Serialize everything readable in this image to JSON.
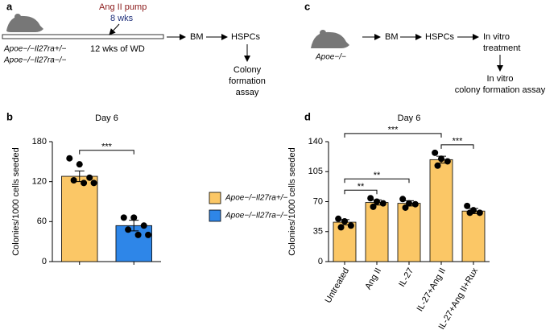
{
  "panels": {
    "a": {
      "label": "a",
      "pump": "Ang II pump",
      "weeks": "8 wks",
      "genotypes": [
        "Apoe−/−Il27ra+/−",
        "Apoe−/−Il27ra−/−"
      ],
      "diet": "12 wks of WD",
      "bm": "BM",
      "hspcs": "HSPCs",
      "assay": [
        "Colony",
        "formation",
        "assay"
      ]
    },
    "b": {
      "label": "b"
    },
    "c": {
      "label": "c",
      "genotype": "Apoe−/−",
      "bm": "BM",
      "hspcs": "HSPCs",
      "treatment": [
        "In vitro",
        "treatment"
      ],
      "assay": [
        "In vitro",
        "colony formation assay"
      ]
    },
    "d": {
      "label": "d"
    }
  },
  "chart_data": [
    {
      "type": "bar",
      "title": "Day 6",
      "y_label": "Colonies/1000 cells seeded",
      "categories": [
        null,
        null
      ],
      "series": [
        {
          "name": "Apoe−/−Il27ra+/−",
          "color": "#fbc766",
          "values": [
            128,
            null
          ],
          "errors": [
            8,
            null
          ],
          "points": [
            [
              155,
              146,
              126,
              122,
              118,
              118
            ],
            null
          ]
        },
        {
          "name": "Apoe−/−Il27ra−/−",
          "color": "#2e86e8",
          "values": [
            null,
            54
          ],
          "errors": [
            null,
            8
          ],
          "points": [
            null,
            [
              66,
              66,
              54,
              48,
              40,
              40
            ]
          ]
        }
      ],
      "ylim": [
        0,
        180
      ],
      "yticks": [
        0,
        60,
        120,
        180
      ],
      "legend": "right",
      "significance": [
        {
          "from": 0,
          "to": 1,
          "label": "***"
        }
      ]
    },
    {
      "type": "bar",
      "title": "Day 6",
      "y_label": "Colonies/1000 cells seeded",
      "categories": [
        "Untreated",
        "Ang II",
        "IL-27",
        "IL-27+Ang II",
        "IL-27+Ang II+Rux"
      ],
      "values": [
        46,
        69,
        68,
        119,
        59
      ],
      "errors": [
        3,
        3,
        3,
        4,
        3
      ],
      "color": "#fbc766",
      "points": [
        [
          50,
          47,
          42,
          40
        ],
        [
          74,
          70,
          68,
          64
        ],
        [
          73,
          68,
          67,
          63
        ],
        [
          127,
          120,
          117,
          112
        ],
        [
          65,
          60,
          57,
          57
        ]
      ],
      "ylim": [
        0,
        140
      ],
      "yticks": [
        0,
        35,
        70,
        105,
        140
      ],
      "significance": [
        {
          "from": 0,
          "to": 1,
          "label": "**"
        },
        {
          "from": 0,
          "to": 2,
          "label": "**"
        },
        {
          "from": 3,
          "to": 4,
          "label": "***"
        },
        {
          "from": 0,
          "to": 3,
          "label": "***"
        }
      ]
    }
  ]
}
